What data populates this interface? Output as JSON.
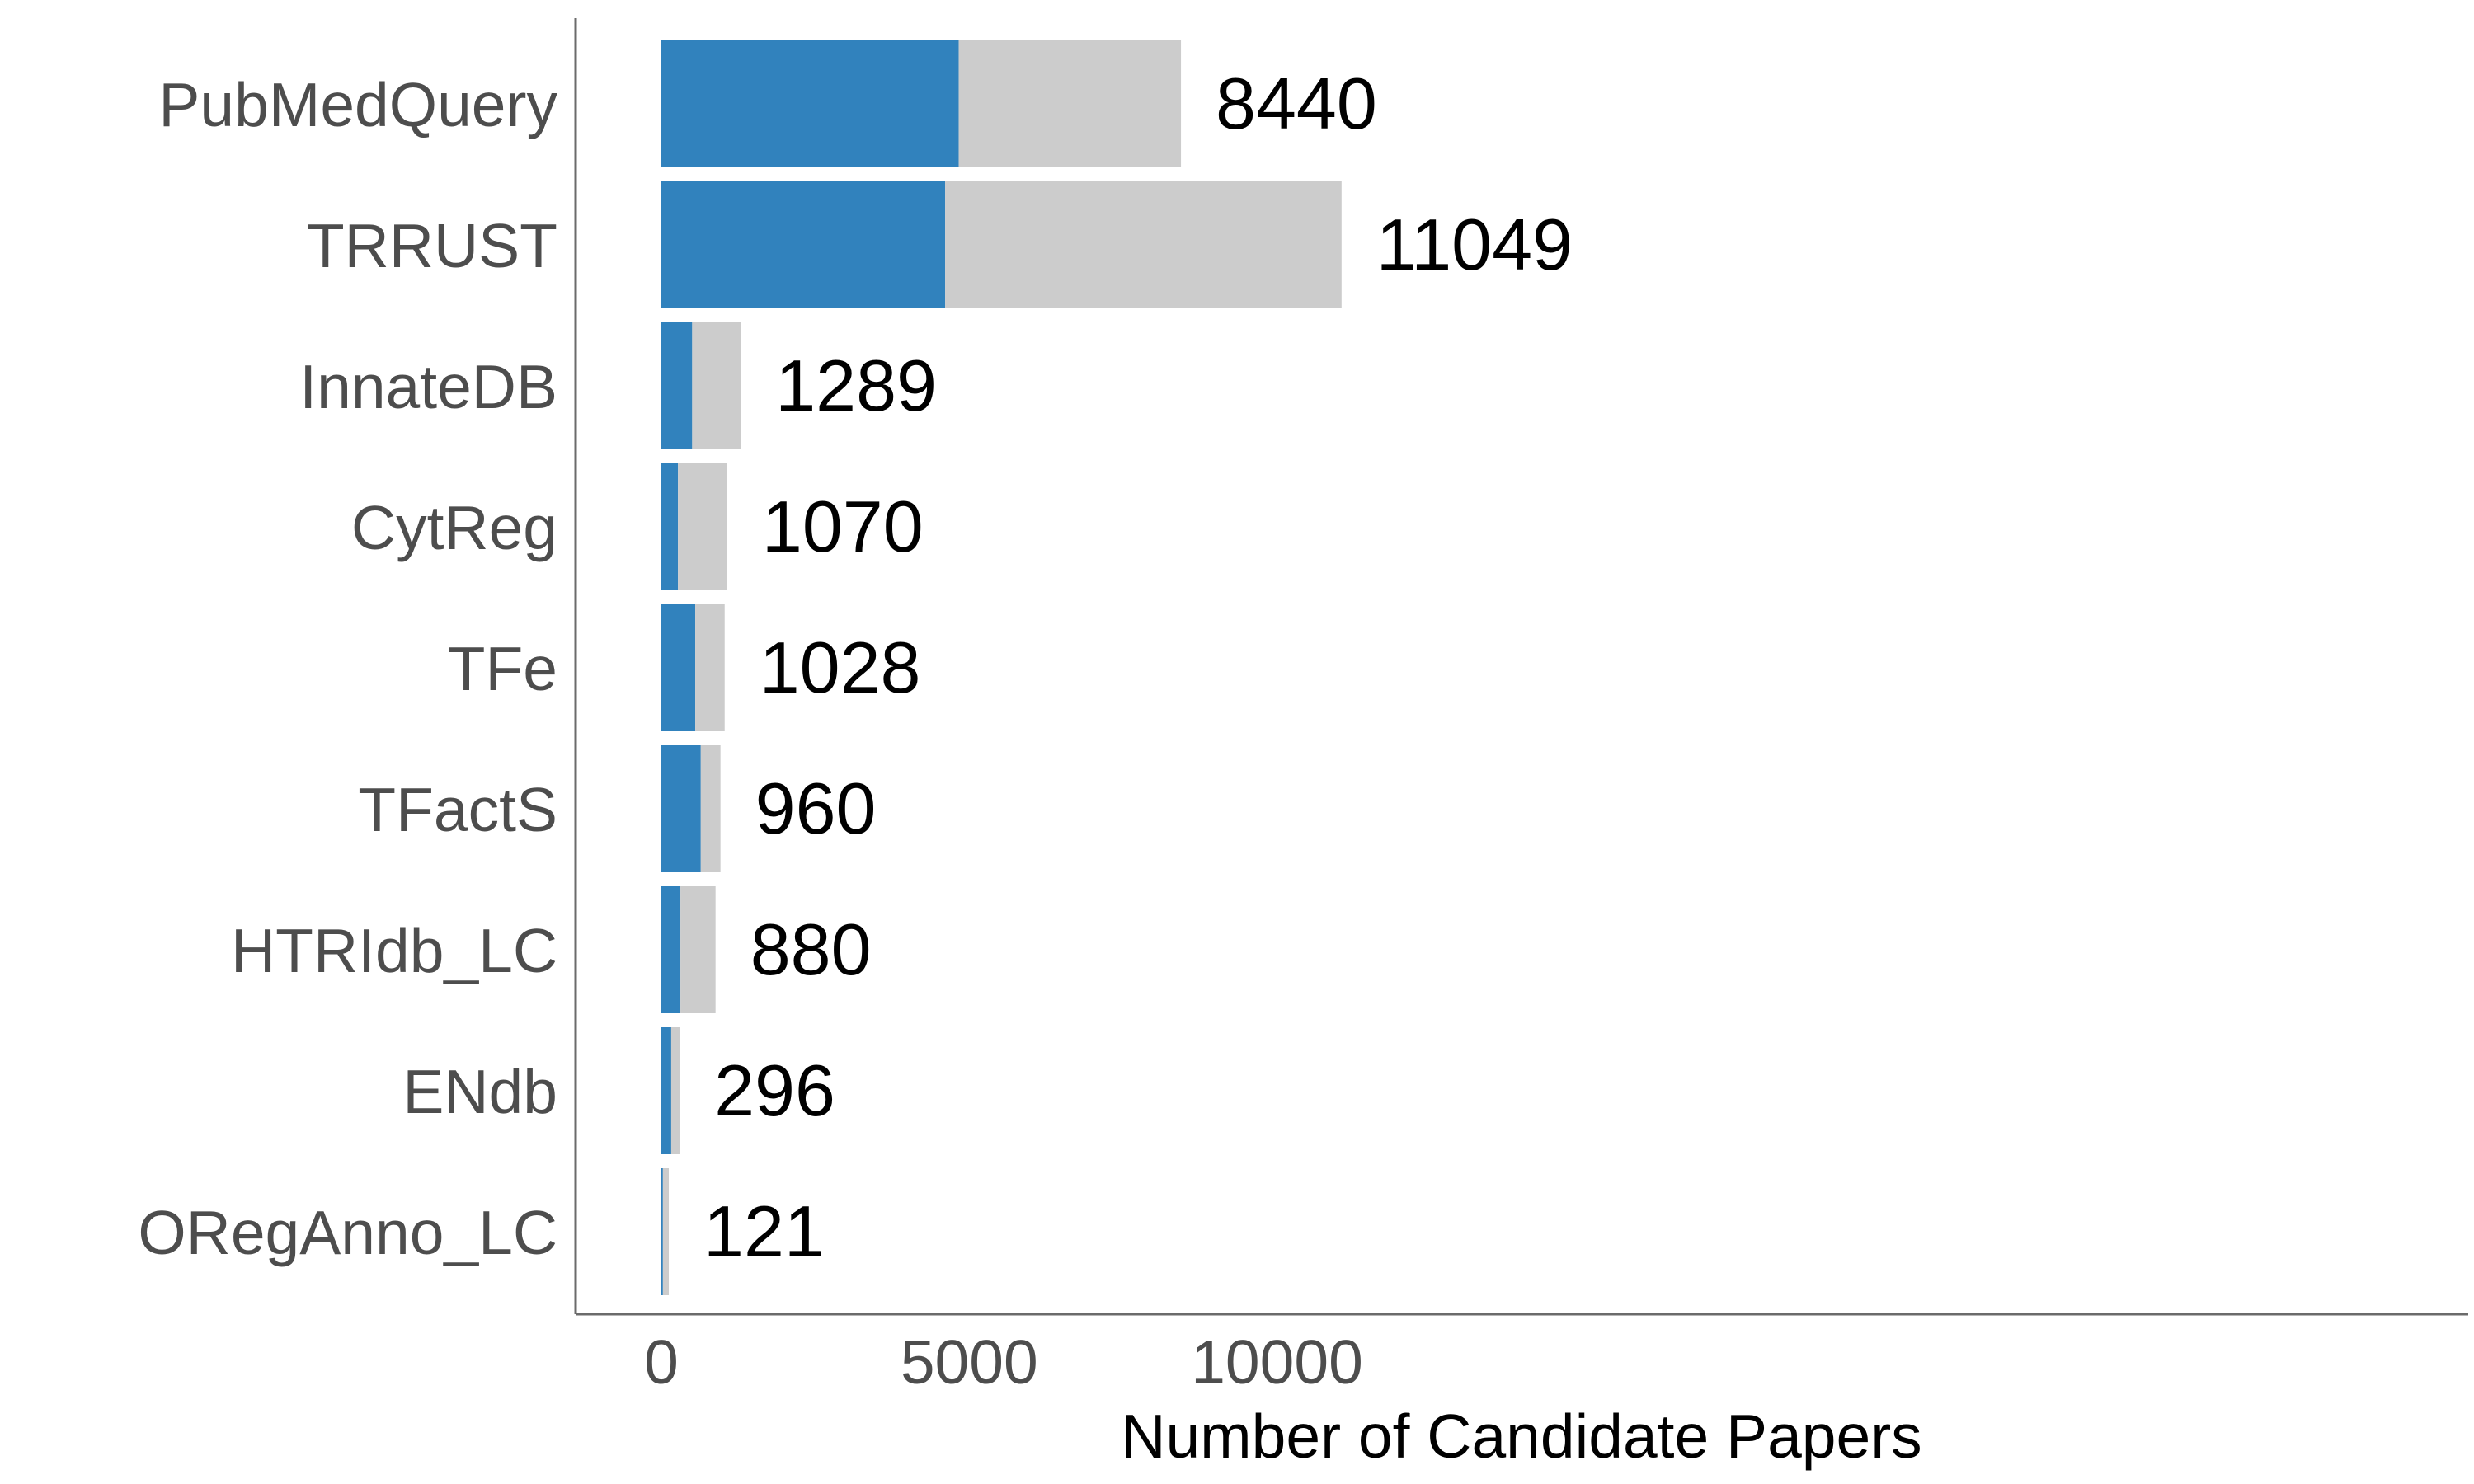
{
  "chart_data": {
    "type": "bar",
    "orientation": "horizontal",
    "stacked": true,
    "xlabel": "Number of Candidate Papers",
    "ylabel": "",
    "xlim": [
      0,
      14000
    ],
    "x_ticks": [
      0,
      5000,
      10000
    ],
    "grid": false,
    "legend": "none",
    "colors": {
      "series_1": "#3182bd",
      "series_2": "#cccccc",
      "axis": "#6b6b6b",
      "tick_text": "#4d4d4d",
      "value_text": "#000000"
    },
    "categories": [
      "PubMedQuery",
      "TRRUST",
      "InnateDB",
      "CytReg",
      "TFe",
      "TFactS",
      "HTRIdb_LC",
      "ENdb",
      "ORegAnno_LC"
    ],
    "series": [
      {
        "values": [
          4830,
          4610,
          500,
          270,
          550,
          640,
          310,
          160,
          25
        ]
      },
      {
        "values": [
          3610,
          6439,
          789,
          800,
          478,
          320,
          570,
          136,
          96
        ]
      }
    ],
    "totals": [
      8440,
      11049,
      1289,
      1070,
      1028,
      960,
      880,
      296,
      121
    ],
    "value_labels": [
      "8440",
      "11049",
      "1289",
      "1070",
      "1028",
      "960",
      "880",
      "296",
      "121"
    ]
  }
}
